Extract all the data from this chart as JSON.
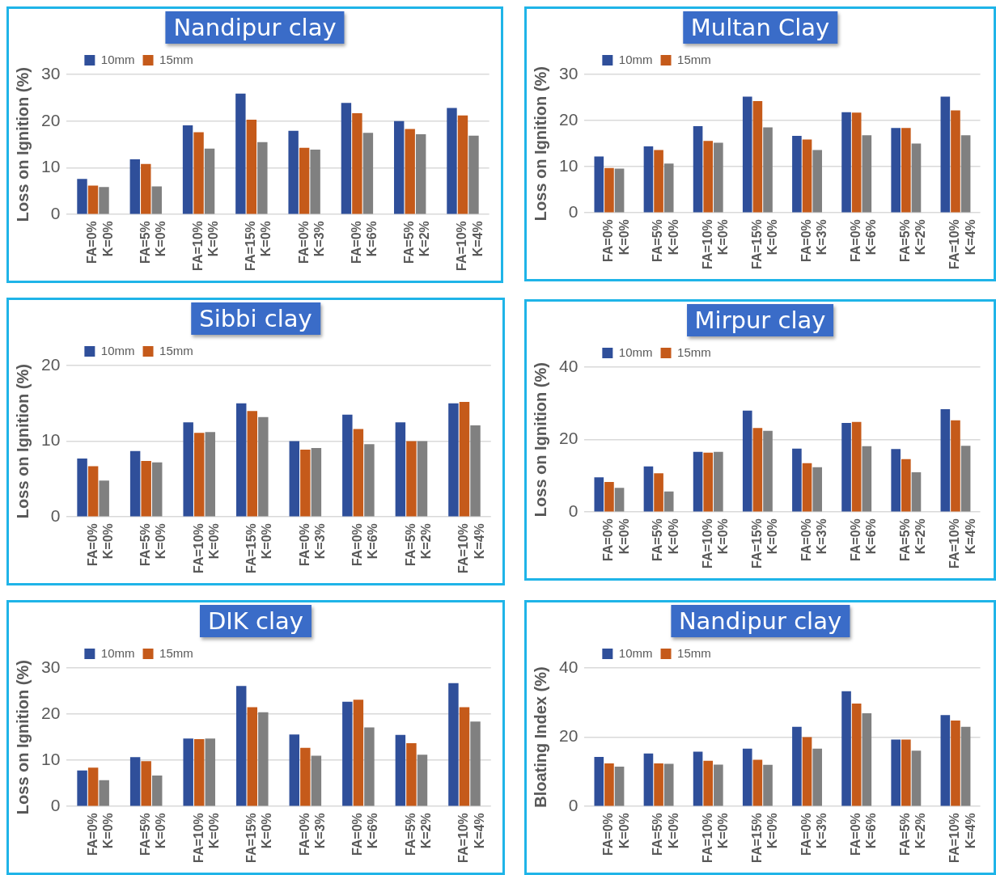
{
  "chart_data": [
    {
      "type": "bar",
      "title": "Nandipur clay",
      "ylabel": "Loss on Ignition (%)",
      "categories": [
        "FA=0%\nK=0%",
        "FA=5%\nK=0%",
        "FA=10%\nK=0%",
        "FA=15%\nK=0%",
        "FA=0%\nK=3%",
        "FA=0%\nK=6%",
        "FA=5%\nK=2%",
        "FA=10%\nK=4%"
      ],
      "series": [
        {
          "name": "10mm",
          "color": "#2f4f9a",
          "values": [
            7.6,
            11.8,
            19.1,
            25.9,
            17.9,
            23.9,
            20.0,
            22.8
          ]
        },
        {
          "name": "15mm",
          "color": "#c55a1a",
          "values": [
            6.2,
            10.8,
            17.6,
            20.3,
            14.3,
            21.7,
            18.3,
            21.2
          ]
        },
        {
          "color": "#808080",
          "values": [
            5.9,
            6.0,
            14.1,
            15.5,
            13.9,
            17.5,
            17.2,
            16.9
          ]
        }
      ],
      "ylim": [
        0,
        30
      ],
      "yticks": [
        0,
        10,
        20,
        30
      ],
      "grid": "y",
      "legend": "top left"
    },
    {
      "type": "bar",
      "title": "Multan Clay",
      "ylabel": "Loss on Ignition (%)",
      "categories": [
        "FA=0%\nK=0%",
        "FA=5%\nK=0%",
        "FA=10%\nK=0%",
        "FA=15%\nK=0%",
        "FA=0%\nK=3%",
        "FA=0%\nK=6%",
        "FA=5%\nK=2%",
        "FA=10%\nK=4%"
      ],
      "series": [
        {
          "name": "10mm",
          "color": "#2f4f9a",
          "values": [
            12.2,
            14.4,
            18.8,
            25.2,
            16.7,
            21.8,
            18.4,
            25.2
          ]
        },
        {
          "name": "15mm",
          "color": "#c55a1a",
          "values": [
            9.7,
            13.6,
            15.6,
            24.2,
            15.9,
            21.7,
            18.4,
            22.2
          ]
        },
        {
          "color": "#808080",
          "values": [
            9.6,
            10.7,
            15.2,
            18.5,
            13.6,
            16.8,
            15.0,
            16.8
          ]
        }
      ],
      "ylim": [
        0,
        30
      ],
      "yticks": [
        0,
        10,
        20,
        30
      ],
      "grid": "y",
      "legend": "top left"
    },
    {
      "type": "bar",
      "title": "Sibbi clay",
      "ylabel": "Loss on Ignition (%)",
      "categories": [
        "FA=0%\nK=0%",
        "FA=5%\nK=0%",
        "FA=10%\nK=0%",
        "FA=15%\nK=0%",
        "FA=0%\nK=3%",
        "FA=0%\nK=6%",
        "FA=5%\nK=2%",
        "FA=10%\nK=4%"
      ],
      "series": [
        {
          "name": "10mm",
          "color": "#2f4f9a",
          "values": [
            7.7,
            8.7,
            12.5,
            15.0,
            10.0,
            13.5,
            12.5,
            15.0
          ]
        },
        {
          "name": "15mm",
          "color": "#c55a1a",
          "values": [
            6.7,
            7.4,
            11.1,
            14.0,
            8.9,
            11.6,
            10.0,
            15.2
          ]
        },
        {
          "color": "#808080",
          "values": [
            4.8,
            7.2,
            11.2,
            13.2,
            9.1,
            9.6,
            10.0,
            12.1
          ]
        }
      ],
      "ylim": [
        0,
        20
      ],
      "yticks": [
        0,
        10,
        20
      ],
      "grid": "y",
      "legend": "top left"
    },
    {
      "type": "bar",
      "title": "Mirpur clay",
      "ylabel": "Loss on Ignition (%)",
      "categories": [
        "FA=0%\nK=0%",
        "FA=5%\nK=0%",
        "FA=10%\nK=0%",
        "FA=15%\nK=0%",
        "FA=0%\nK=3%",
        "FA=0%\nK=6%",
        "FA=5%\nK=2%",
        "FA=10%\nK=4%"
      ],
      "series": [
        {
          "name": "10mm",
          "color": "#2f4f9a",
          "values": [
            9.6,
            12.6,
            16.6,
            28.0,
            17.5,
            24.6,
            17.4,
            28.4
          ]
        },
        {
          "name": "15mm",
          "color": "#c55a1a",
          "values": [
            8.3,
            10.7,
            16.4,
            23.2,
            13.5,
            24.9,
            14.6,
            25.3
          ]
        },
        {
          "color": "#808080",
          "values": [
            6.7,
            5.7,
            16.6,
            22.4,
            12.4,
            18.2,
            11.0,
            18.3
          ]
        }
      ],
      "ylim": [
        0,
        40
      ],
      "yticks": [
        0,
        20,
        40
      ],
      "grid": "y",
      "legend": "top left"
    },
    {
      "type": "bar",
      "title": "DIK clay",
      "ylabel": "Loss on Ignition (%)",
      "categories": [
        "FA=0%\nK=0%",
        "FA=5%\nK=0%",
        "FA=10%\nK=0%",
        "FA=15%\nK=0%",
        "FA=0%\nK=3%",
        "FA=0%\nK=6%",
        "FA=5%\nK=2%",
        "FA=10%\nK=4%"
      ],
      "series": [
        {
          "name": "10mm",
          "color": "#2f4f9a",
          "values": [
            7.8,
            10.7,
            14.7,
            26.1,
            15.6,
            22.7,
            15.5,
            26.7
          ]
        },
        {
          "name": "15mm",
          "color": "#c55a1a",
          "values": [
            8.4,
            9.8,
            14.6,
            21.5,
            12.7,
            23.1,
            13.7,
            21.5
          ]
        },
        {
          "color": "#808080",
          "values": [
            5.7,
            6.7,
            14.7,
            20.4,
            11.0,
            17.1,
            11.2,
            18.4
          ]
        }
      ],
      "ylim": [
        0,
        30
      ],
      "yticks": [
        0,
        10,
        20,
        30
      ],
      "grid": "y",
      "legend": "top left"
    },
    {
      "type": "bar",
      "title": "Nandipur clay",
      "ylabel": "Bloating Index (%)",
      "categories": [
        "FA=0%\nK=0%",
        "FA=5%\nK=0%",
        "FA=10%\nK=0%",
        "FA=15%\nK=0%",
        "FA=0%\nK=3%",
        "FA=0%\nK=6%",
        "FA=5%\nK=2%",
        "FA=10%\nK=4%"
      ],
      "series": [
        {
          "name": "10mm",
          "color": "#2f4f9a",
          "values": [
            14.3,
            15.3,
            15.8,
            16.7,
            23.0,
            33.3,
            19.3,
            26.4
          ]
        },
        {
          "name": "15mm",
          "color": "#c55a1a",
          "values": [
            12.4,
            12.4,
            13.2,
            13.5,
            20.0,
            29.7,
            19.3,
            24.8
          ]
        },
        {
          "color": "#808080",
          "values": [
            11.5,
            12.3,
            12.1,
            12.0,
            16.7,
            26.9,
            16.1,
            23.0
          ]
        }
      ],
      "ylim": [
        0,
        40
      ],
      "yticks": [
        0,
        20,
        40
      ],
      "grid": "y",
      "legend": "top left"
    }
  ]
}
